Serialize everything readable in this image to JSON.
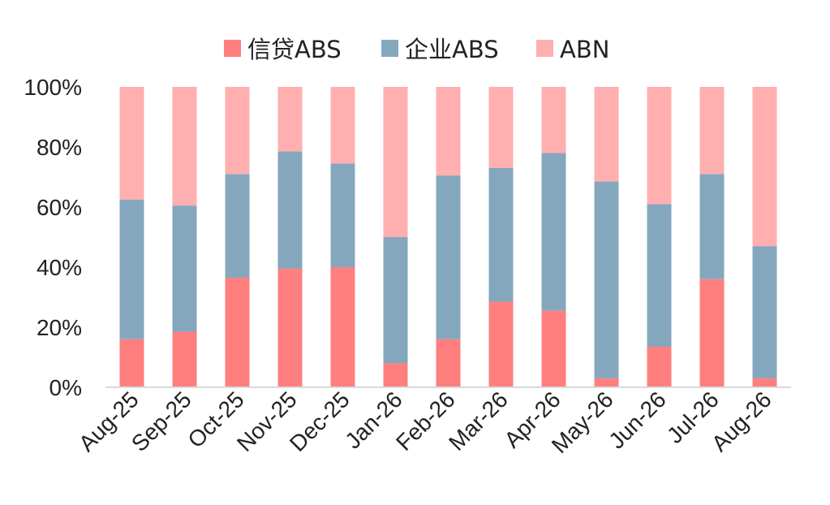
{
  "chart_data": {
    "type": "bar",
    "stacked": true,
    "categories": [
      "Aug-25",
      "Sep-25",
      "Oct-25",
      "Nov-25",
      "Dec-25",
      "Jan-26",
      "Feb-26",
      "Mar-26",
      "Apr-26",
      "May-26",
      "Jun-26",
      "Jul-26",
      "Aug-26"
    ],
    "series": [
      {
        "name": "信贷ABS",
        "color": "#ff7f7f",
        "values": [
          16,
          18.5,
          36.5,
          39.5,
          40,
          8,
          16,
          28.5,
          25.5,
          3,
          13.5,
          36,
          3
        ]
      },
      {
        "name": "企业ABS",
        "color": "#84a7be",
        "values": [
          46.5,
          42,
          34.5,
          39,
          34.5,
          42,
          54.5,
          44.5,
          52.5,
          65.5,
          47.5,
          35,
          44
        ]
      },
      {
        "name": "ABN",
        "color": "#ffafaf",
        "values": [
          37.5,
          39.5,
          29,
          21.5,
          25.5,
          50,
          29.5,
          27,
          22,
          31.5,
          39,
          29,
          53
        ]
      }
    ],
    "y_ticks": [
      "0%",
      "20%",
      "40%",
      "60%",
      "80%",
      "100%"
    ],
    "ylim": [
      0,
      100
    ],
    "y_unit": "%",
    "title": "",
    "xlabel": "",
    "ylabel": "",
    "grid": false,
    "legend_position": "top-center",
    "axis_color": "#d9d9d9"
  }
}
